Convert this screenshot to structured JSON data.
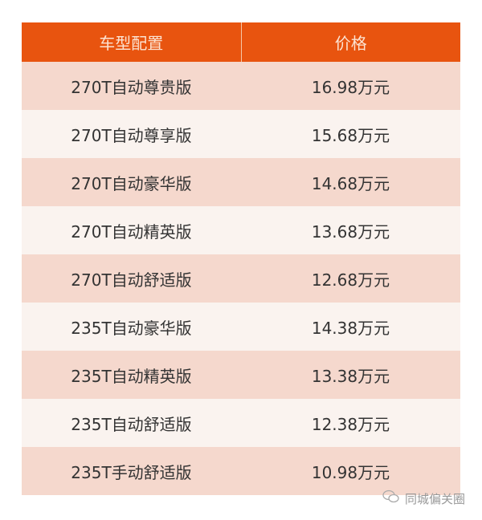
{
  "header": {
    "config": "车型配置",
    "price": "价格"
  },
  "rows": [
    {
      "config": "270T自动尊贵版",
      "price": "16.98万元"
    },
    {
      "config": "270T自动尊享版",
      "price": "15.68万元"
    },
    {
      "config": "270T自动豪华版",
      "price": "14.68万元"
    },
    {
      "config": "270T自动精英版",
      "price": "13.68万元"
    },
    {
      "config": "270T自动舒适版",
      "price": "12.68万元"
    },
    {
      "config": "235T自动豪华版",
      "price": "14.38万元"
    },
    {
      "config": "235T自动精英版",
      "price": "13.38万元"
    },
    {
      "config": "235T自动舒适版",
      "price": "12.38万元"
    },
    {
      "config": "235T手动舒适版",
      "price": "10.98万元"
    }
  ],
  "watermark": {
    "icon": "wechat-icon",
    "text": "同城偏关圈"
  },
  "colors": {
    "header": "#E8540F",
    "row_odd": "#F5D8CD",
    "row_even": "#FAF3EF"
  }
}
